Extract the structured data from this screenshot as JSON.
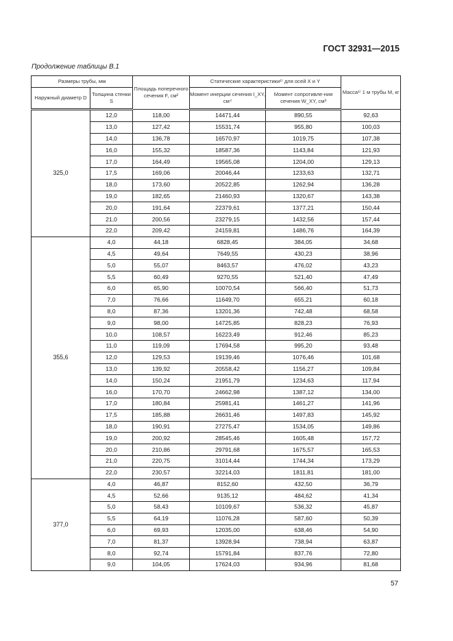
{
  "header": {
    "standard": "ГОСТ 32931—2015"
  },
  "caption": "Продолжение таблицы В.1",
  "table": {
    "headers": {
      "pipe_sizes": "Размеры трубы, мм",
      "outer_diameter": "Наружный диаметр D",
      "wall": "Толщина стенки S",
      "area": "Площадь поперечного сечения F, см²",
      "static": "Статические характеристики¹⁾ для осей X и Y",
      "inertia": "Момент инерции сечения I_XY, см⁴",
      "resistance": "Момент сопротивле-ния сечения W_XY, см³",
      "mass": "Масса¹⁾ 1 м трубы M, кг"
    },
    "groups": [
      {
        "diameter": "325,0",
        "rows": [
          [
            "12,0",
            "118,00",
            "14471,44",
            "890,55",
            "92,63"
          ],
          [
            "13,0",
            "127,42",
            "15531,74",
            "955,80",
            "100,03"
          ],
          [
            "14,0",
            "136,78",
            "16570,97",
            "1019,75",
            "107,38"
          ],
          [
            "16,0",
            "155,32",
            "18587,36",
            "1143,84",
            "121,93"
          ],
          [
            "17,0",
            "164,49",
            "19565,08",
            "1204,00",
            "129,13"
          ],
          [
            "17,5",
            "169,06",
            "20046,44",
            "1233,63",
            "132,71"
          ],
          [
            "18,0",
            "173,60",
            "20522,85",
            "1262,94",
            "136,28"
          ],
          [
            "19,0",
            "182,65",
            "21460,93",
            "1320,67",
            "143,38"
          ],
          [
            "20,0",
            "191,64",
            "22379,61",
            "1377,21",
            "150,44"
          ],
          [
            "21,0",
            "200,56",
            "23279,15",
            "1432,56",
            "157,44"
          ],
          [
            "22,0",
            "209,42",
            "24159,81",
            "1486,76",
            "164,39"
          ]
        ]
      },
      {
        "diameter": "355,6",
        "rows": [
          [
            "4,0",
            "44,18",
            "6828,45",
            "384,05",
            "34,68"
          ],
          [
            "4,5",
            "49,64",
            "7649,55",
            "430,23",
            "38,96"
          ],
          [
            "5,0",
            "55,07",
            "8463,57",
            "476,02",
            "43,23"
          ],
          [
            "5,5",
            "60,49",
            "9270,55",
            "521,40",
            "47,49"
          ],
          [
            "6,0",
            "65,90",
            "10070,54",
            "566,40",
            "51,73"
          ],
          [
            "7,0",
            "76,66",
            "11649,70",
            "655,21",
            "60,18"
          ],
          [
            "8,0",
            "87,36",
            "13201,36",
            "742,48",
            "68,58"
          ],
          [
            "9,0",
            "98,00",
            "14725,85",
            "828,23",
            "76,93"
          ],
          [
            "10,0",
            "108,57",
            "16223,49",
            "912,46",
            "85,23"
          ],
          [
            "11,0",
            "119,09",
            "17694,58",
            "995,20",
            "93,48"
          ],
          [
            "12,0",
            "129,53",
            "19139,46",
            "1076,46",
            "101,68"
          ],
          [
            "13,0",
            "139,92",
            "20558,42",
            "1156,27",
            "109,84"
          ],
          [
            "14,0",
            "150,24",
            "21951,79",
            "1234,63",
            "117,94"
          ],
          [
            "16,0",
            "170,70",
            "24662,98",
            "1387,12",
            "134,00"
          ],
          [
            "17,0",
            "180,84",
            "25981,41",
            "1461,27",
            "141,96"
          ],
          [
            "17,5",
            "185,88",
            "26631,46",
            "1497,83",
            "145,92"
          ],
          [
            "18,0",
            "190,91",
            "27275,47",
            "1534,05",
            "149,86"
          ],
          [
            "19,0",
            "200,92",
            "28545,46",
            "1605,48",
            "157,72"
          ],
          [
            "20,0",
            "210,86",
            "29791,68",
            "1675,57",
            "165,53"
          ],
          [
            "21,0",
            "220,75",
            "31014,44",
            "1744,34",
            "173,29"
          ],
          [
            "22,0",
            "230,57",
            "32214,03",
            "1811,81",
            "181,00"
          ]
        ]
      },
      {
        "diameter": "377,0",
        "rows": [
          [
            "4,0",
            "46,87",
            "8152,60",
            "432,50",
            "36,79"
          ],
          [
            "4,5",
            "52,66",
            "9135,12",
            "484,62",
            "41,34"
          ],
          [
            "5,0",
            "58,43",
            "10109,67",
            "536,32",
            "45,87"
          ],
          [
            "5,5",
            "64,19",
            "11076,28",
            "587,60",
            "50,39"
          ],
          [
            "6,0",
            "69,93",
            "12035,00",
            "638,46",
            "54,90"
          ],
          [
            "7,0",
            "81,37",
            "13928,94",
            "738,94",
            "63,87"
          ],
          [
            "8,0",
            "92,74",
            "15791,84",
            "837,76",
            "72,80"
          ],
          [
            "9,0",
            "104,05",
            "17624,03",
            "934,96",
            "81,68"
          ]
        ]
      }
    ]
  },
  "footer": {
    "page_number": "57"
  }
}
